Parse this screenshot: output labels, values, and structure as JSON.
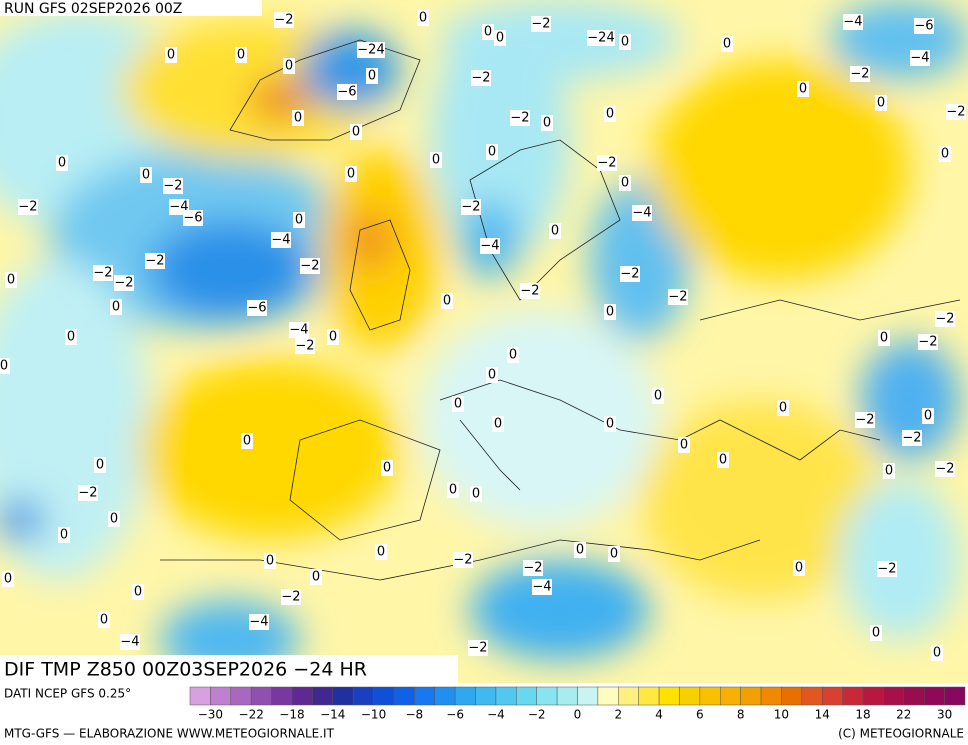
{
  "header": {
    "run": "RUN GFS 02SEP2026 00Z"
  },
  "footer": {
    "title": "DIF TMP Z850 00Z03SEP2026 −24 HR",
    "source": "DATI NCEP GFS 0.25°",
    "credit": "MTG-GFS — ELABORAZIONE WWW.METEOGIORNALE.IT",
    "copyright": "(C) METEOGIORNALE"
  },
  "legend": {
    "colors": [
      "#d8a0e0",
      "#c080d0",
      "#a868c0",
      "#9050b0",
      "#7838a0",
      "#602890",
      "#402890",
      "#2030a0",
      "#1840c0",
      "#1050d8",
      "#1060e8",
      "#1878f0",
      "#2090f0",
      "#30a8f0",
      "#40b8f0",
      "#50c8f0",
      "#68d8f0",
      "#88e4f0",
      "#a8ecf0",
      "#c8f4f4",
      "#fffcc0",
      "#fff080",
      "#ffe840",
      "#ffe000",
      "#f8d000",
      "#f8c000",
      "#f8b000",
      "#f0a000",
      "#f08800",
      "#e87000",
      "#e05820",
      "#d84030",
      "#c82838",
      "#b81840",
      "#a81048",
      "#980c50",
      "#900858",
      "#880860"
    ],
    "ticks": [
      "−30",
      "−22",
      "−18",
      "−14",
      "−10",
      "−8",
      "−6",
      "−4",
      "−2",
      "0",
      "2",
      "4",
      "6",
      "8",
      "10",
      "14",
      "18",
      "22",
      "30"
    ]
  },
  "map": {
    "contour_labels": [
      "−2",
      "0",
      "0",
      "0",
      "−2",
      "−24",
      "0",
      "0",
      "−4",
      "−6",
      "−4",
      "0",
      "0",
      "−24",
      "0",
      "0",
      "−6",
      "0",
      "0",
      "−2",
      "−2",
      "0",
      "0",
      "0",
      "−2",
      "0",
      "−2",
      "0",
      "0",
      "0",
      "−2",
      "0",
      "0",
      "0",
      "−2",
      "0",
      "−2",
      "−4",
      "−6",
      "0",
      "−2",
      "−4",
      "−4",
      "−4",
      "0",
      "−2",
      "−2",
      "−2",
      "−2",
      "0",
      "−2",
      "−2",
      "0",
      "−2",
      "−6",
      "0",
      "0",
      "−2",
      "−4",
      "−2",
      "0",
      "0",
      "0",
      "−2",
      "0",
      "0",
      "0",
      "0",
      "0",
      "0",
      "−2",
      "0",
      "0",
      "0",
      "0",
      "−2",
      "0",
      "0",
      "0",
      "0",
      "0",
      "−2",
      "−2",
      "0",
      "0",
      "0",
      "0",
      "0",
      "0",
      "0",
      "−2",
      "−2",
      "−4",
      "0",
      "0",
      "0",
      "−2",
      "0",
      "0",
      "−2",
      "0",
      "−4",
      "0",
      "−4",
      "−2",
      "0"
    ]
  }
}
